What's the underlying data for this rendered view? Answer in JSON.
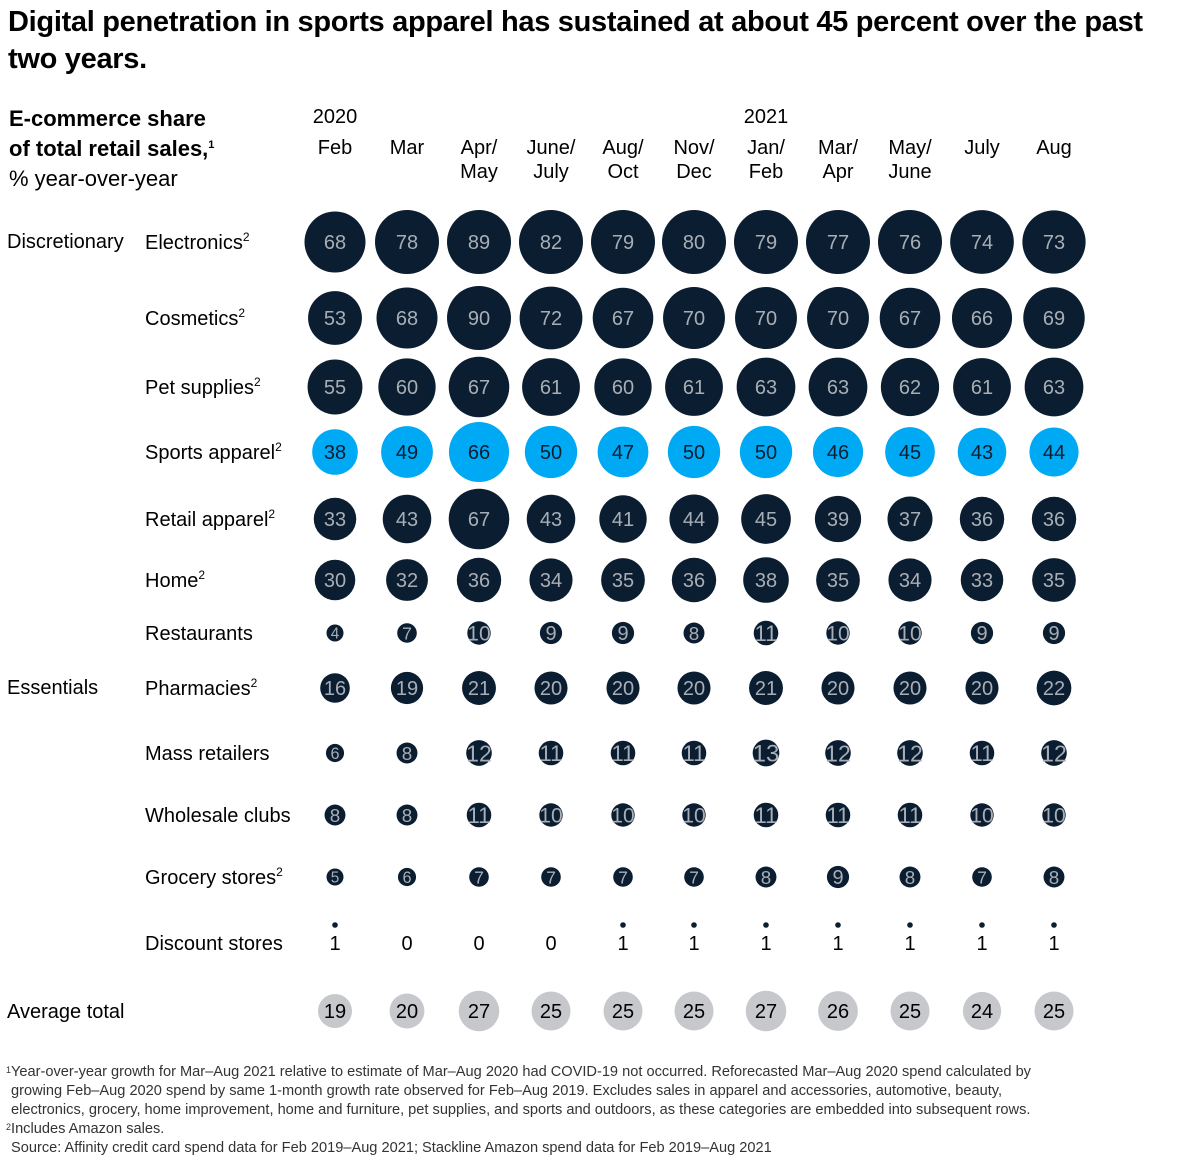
{
  "title": "Digital penetration in sports apparel has sustained at about 45 percent over the past two years.",
  "subtitle": {
    "line1": "E-commerce share",
    "line2": "of total retail sales,",
    "line2_sup": "1",
    "unit": "% year-over-year"
  },
  "colors": {
    "dark": "#0b1d30",
    "highlight": "#00a9f4",
    "average": "#c6c8cb",
    "dark_text": "#a8aeb5",
    "highlight_text": "#0b1d30",
    "average_text": "#000000"
  },
  "chart_data": {
    "type": "bubble-table",
    "title": "Digital penetration in sports apparel has sustained at about 45 percent over the past two years.",
    "unit": "% year-over-year",
    "years": [
      {
        "label": "2020",
        "first_period": 0
      },
      {
        "label": "2021",
        "first_period": 6
      }
    ],
    "periods": [
      {
        "line1": "Feb",
        "line2": ""
      },
      {
        "line1": "Mar",
        "line2": ""
      },
      {
        "line1": "Apr/",
        "line2": "May"
      },
      {
        "line1": "June/",
        "line2": "July"
      },
      {
        "line1": "Aug/",
        "line2": "Oct"
      },
      {
        "line1": "Nov/",
        "line2": "Dec"
      },
      {
        "line1": "Jan/",
        "line2": "Feb"
      },
      {
        "line1": "Mar/",
        "line2": "Apr"
      },
      {
        "line1": "May/",
        "line2": "June"
      },
      {
        "line1": "July",
        "line2": ""
      },
      {
        "line1": "Aug",
        "line2": ""
      }
    ],
    "groups": [
      {
        "label": "Discretionary",
        "first_row": 0
      },
      {
        "label": "Essentials",
        "first_row": 7
      }
    ],
    "rows": [
      {
        "label": "Electronics",
        "sup": "2",
        "style": "dark",
        "values": [
          68,
          78,
          89,
          82,
          79,
          80,
          79,
          77,
          76,
          74,
          73
        ]
      },
      {
        "label": "Cosmetics",
        "sup": "2",
        "style": "dark",
        "values": [
          53,
          68,
          90,
          72,
          67,
          70,
          70,
          70,
          67,
          66,
          69
        ]
      },
      {
        "label": "Pet supplies",
        "sup": "2",
        "style": "dark",
        "values": [
          55,
          60,
          67,
          61,
          60,
          61,
          63,
          63,
          62,
          61,
          63
        ]
      },
      {
        "label": "Sports apparel",
        "sup": "2",
        "style": "highlight",
        "values": [
          38,
          49,
          66,
          50,
          47,
          50,
          50,
          46,
          45,
          43,
          44
        ]
      },
      {
        "label": "Retail apparel",
        "sup": "2",
        "style": "dark",
        "values": [
          33,
          43,
          67,
          43,
          41,
          44,
          45,
          39,
          37,
          36,
          36
        ]
      },
      {
        "label": "Home",
        "sup": "2",
        "style": "dark",
        "values": [
          30,
          32,
          36,
          34,
          35,
          36,
          38,
          35,
          34,
          33,
          35
        ]
      },
      {
        "label": "Restaurants",
        "sup": "",
        "style": "dark",
        "values": [
          4,
          7,
          10,
          9,
          9,
          8,
          11,
          10,
          10,
          9,
          9
        ]
      },
      {
        "label": "Pharmacies",
        "sup": "2",
        "style": "dark",
        "values": [
          16,
          19,
          21,
          20,
          20,
          20,
          21,
          20,
          20,
          20,
          22
        ]
      },
      {
        "label": "Mass retailers",
        "sup": "",
        "style": "dark",
        "values": [
          6,
          8,
          12,
          11,
          11,
          11,
          13,
          12,
          12,
          11,
          12
        ]
      },
      {
        "label": "Wholesale clubs",
        "sup": "",
        "style": "dark",
        "values": [
          8,
          8,
          11,
          10,
          10,
          10,
          11,
          11,
          11,
          10,
          10
        ]
      },
      {
        "label": "Grocery stores",
        "sup": "2",
        "style": "dark",
        "values": [
          5,
          6,
          7,
          7,
          7,
          7,
          8,
          9,
          8,
          7,
          8
        ]
      },
      {
        "label": "Discount stores",
        "sup": "",
        "style": "small",
        "values": [
          1,
          0,
          0,
          0,
          1,
          1,
          1,
          1,
          1,
          1,
          1
        ]
      }
    ],
    "average": {
      "label": "Average total",
      "style": "average",
      "values": [
        19,
        20,
        27,
        25,
        25,
        25,
        27,
        26,
        25,
        24,
        25
      ]
    }
  },
  "footnotes": {
    "note1_num": "1",
    "note1_lines": [
      "Year-over-year growth for Mar–Aug 2021 relative to estimate of Mar–Aug 2020 had COVID-19 not occurred. Reforecasted Mar–Aug 2020 spend calculated by",
      "growing Feb–Aug 2020 spend by same 1-month growth rate observed for Feb–Aug 2019. Excludes sales in apparel and accessories, automotive, beauty,",
      "electronics, grocery, home improvement, home and furniture, pet supplies, and sports and outdoors, as these categories are embedded into subsequent rows."
    ],
    "note2_num": "2",
    "note2": "Includes Amazon sales.",
    "source": "Source: Affinity credit card spend data for Feb 2019–Aug 2021; Stackline Amazon spend data for Feb 2019–Aug 2021"
  }
}
